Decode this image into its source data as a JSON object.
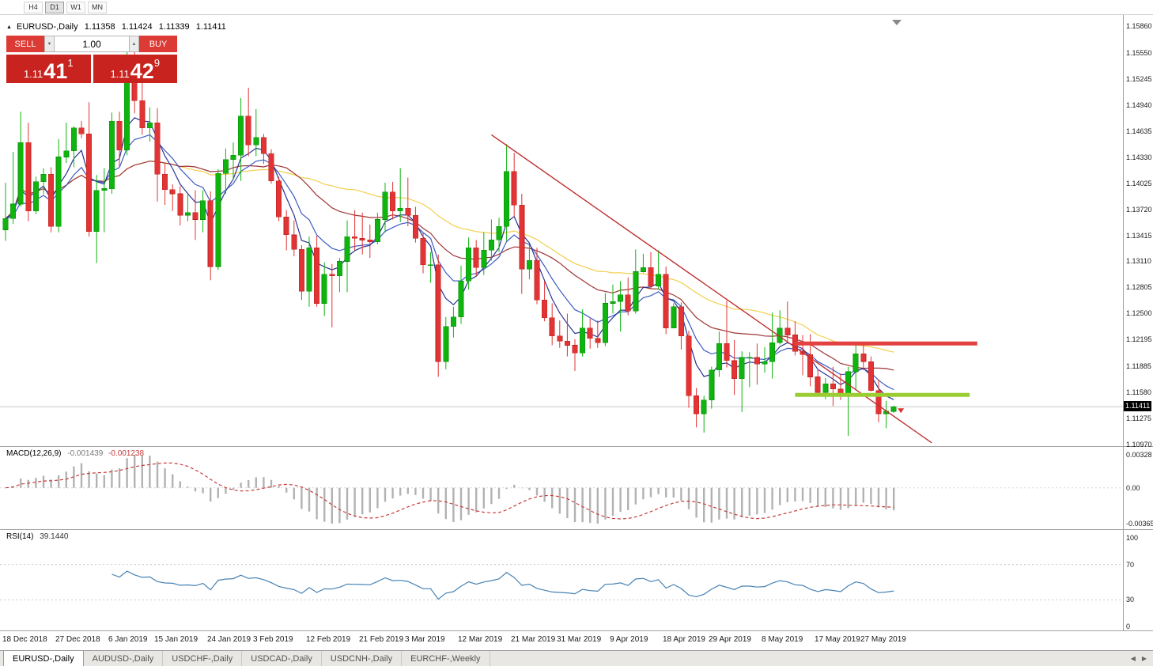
{
  "toolbar": {
    "timeframes": [
      "H4",
      "D1",
      "W1",
      "MN"
    ],
    "active_timeframe": "D1"
  },
  "chart_header": {
    "symbol": "EURUSD-,Daily",
    "open": "1.11358",
    "high": "1.11424",
    "low": "1.11339",
    "close": "1.11411"
  },
  "trade_panel": {
    "sell_label": "SELL",
    "buy_label": "BUY",
    "volume": "1.00",
    "bid_price": {
      "prefix": "1.11",
      "big": "41",
      "sup": "1"
    },
    "ask_price": {
      "prefix": "1.11",
      "big": "42",
      "sup": "9"
    }
  },
  "macd": {
    "label": "MACD(12,26,9)",
    "value_main": "-0.001439",
    "value_signal": "-0.001238",
    "axis_max": "0.00328",
    "axis_zero": "0.00",
    "axis_min": "-0.00365",
    "fast": 12,
    "slow": 26,
    "signal": 9
  },
  "rsi": {
    "label": "RSI(14)",
    "value": "39.1440",
    "period": 14,
    "axis": [
      "100",
      "70",
      "30",
      "0"
    ],
    "levels": [
      70,
      30
    ]
  },
  "tabs": [
    {
      "label": "EURUSD-,Daily",
      "active": true
    },
    {
      "label": "AUDUSD-,Daily",
      "active": false
    },
    {
      "label": "USDCHF-,Daily",
      "active": false
    },
    {
      "label": "USDCAD-,Daily",
      "active": false
    },
    {
      "label": "USDCNH-,Daily",
      "active": false
    },
    {
      "label": "EURCHF-,Weekly",
      "active": false
    }
  ],
  "icons": {
    "triangle_up": "▲",
    "triangle_down": "▼",
    "tab_scroll_left": "◀",
    "tab_scroll_right": "▶",
    "symbol_marker": "▲"
  },
  "chart_data": {
    "type": "candlestick",
    "title": "EURUSD- Daily",
    "price_axis": {
      "max": 1.1586,
      "min": 1.1097,
      "labels": [
        "1.15860",
        "1.15550",
        "1.15245",
        "1.14940",
        "1.14635",
        "1.14330",
        "1.14025",
        "1.13720",
        "1.13415",
        "1.13110",
        "1.12805",
        "1.12500",
        "1.12195",
        "1.11885",
        "1.11580",
        "1.11275",
        "1.10970"
      ]
    },
    "current_price": {
      "bid": 1.11411,
      "label": "1.11411"
    },
    "colors": {
      "up": "#0fb40f",
      "up_border": "#0a8f0a",
      "down": "#e23434",
      "down_border": "#bf2020"
    },
    "moving_averages": [
      {
        "period": 5,
        "type": "ema",
        "color": "#283593"
      },
      {
        "period": 10,
        "type": "ema",
        "color": "#3d5bc4"
      },
      {
        "period": 24,
        "type": "sma",
        "color": "#a03535"
      },
      {
        "period": 40,
        "type": "sma",
        "color": "#f2cf4d"
      }
    ],
    "overlays": {
      "trendline": {
        "i1": 64,
        "p1": 1.1459,
        "i2": 122,
        "p2": 1.1099,
        "color": "#c03030"
      },
      "resistance": {
        "price": 1.1215,
        "i1": 104,
        "i2": 128,
        "color": "#e34040"
      },
      "support": {
        "price": 1.1155,
        "i1": 104,
        "i2": 127,
        "color": "#9acd32"
      }
    },
    "date_labels": [
      {
        "text": "18 Dec 2018",
        "index": 0
      },
      {
        "text": "27 Dec 2018",
        "index": 7
      },
      {
        "text": "6 Jan 2019",
        "index": 14
      },
      {
        "text": "15 Jan 2019",
        "index": 20
      },
      {
        "text": "24 Jan 2019",
        "index": 27
      },
      {
        "text": "3 Feb 2019",
        "index": 33
      },
      {
        "text": "12 Feb 2019",
        "index": 40
      },
      {
        "text": "21 Feb 2019",
        "index": 47
      },
      {
        "text": "3 Mar 2019",
        "index": 53
      },
      {
        "text": "12 Mar 2019",
        "index": 60
      },
      {
        "text": "21 Mar 2019",
        "index": 67
      },
      {
        "text": "31 Mar 2019",
        "index": 73
      },
      {
        "text": "9 Apr 2019",
        "index": 80
      },
      {
        "text": "18 Apr 2019",
        "index": 87
      },
      {
        "text": "29 Apr 2019",
        "index": 93
      },
      {
        "text": "8 May 2019",
        "index": 100
      },
      {
        "text": "17 May 2019",
        "index": 107
      },
      {
        "text": "27 May 2019",
        "index": 113
      }
    ],
    "candles": [
      [
        1.1348,
        1.1403,
        1.1335,
        1.1361
      ],
      [
        1.1361,
        1.1439,
        1.1355,
        1.1378
      ],
      [
        1.1378,
        1.1486,
        1.1375,
        1.145
      ],
      [
        1.145,
        1.1473,
        1.1358,
        1.137
      ],
      [
        1.137,
        1.141,
        1.1366,
        1.1404
      ],
      [
        1.1404,
        1.142,
        1.139,
        1.1413
      ],
      [
        1.1413,
        1.1421,
        1.1345,
        1.1352
      ],
      [
        1.1352,
        1.1454,
        1.1345,
        1.1433
      ],
      [
        1.1433,
        1.1473,
        1.1426,
        1.144
      ],
      [
        1.144,
        1.1469,
        1.1421,
        1.1467
      ],
      [
        1.1467,
        1.1475,
        1.1455,
        1.146
      ],
      [
        1.146,
        1.1497,
        1.134,
        1.1346
      ],
      [
        1.1346,
        1.1412,
        1.1309,
        1.1394
      ],
      [
        1.1394,
        1.142,
        1.1345,
        1.1396
      ],
      [
        1.1396,
        1.1485,
        1.139,
        1.1475
      ],
      [
        1.1475,
        1.1486,
        1.1422,
        1.1441
      ],
      [
        1.1441,
        1.157,
        1.1435,
        1.1545
      ],
      [
        1.1545,
        1.1571,
        1.1484,
        1.1499
      ],
      [
        1.1499,
        1.1541,
        1.1459,
        1.1467
      ],
      [
        1.1467,
        1.1491,
        1.1451,
        1.1473
      ],
      [
        1.1473,
        1.149,
        1.1381,
        1.1413
      ],
      [
        1.1413,
        1.1426,
        1.1377,
        1.1395
      ],
      [
        1.1395,
        1.1401,
        1.137,
        1.139
      ],
      [
        1.139,
        1.1399,
        1.1353,
        1.1365
      ],
      [
        1.1365,
        1.139,
        1.1358,
        1.1368
      ],
      [
        1.1368,
        1.1394,
        1.1336,
        1.136
      ],
      [
        1.136,
        1.1394,
        1.1345,
        1.1382
      ],
      [
        1.1382,
        1.1393,
        1.1289,
        1.1305
      ],
      [
        1.1305,
        1.1419,
        1.1301,
        1.1414
      ],
      [
        1.1414,
        1.1443,
        1.139,
        1.143
      ],
      [
        1.143,
        1.145,
        1.1407,
        1.1435
      ],
      [
        1.1435,
        1.1502,
        1.1405,
        1.1481
      ],
      [
        1.1481,
        1.1514,
        1.1434,
        1.1447
      ],
      [
        1.1447,
        1.1489,
        1.1434,
        1.1456
      ],
      [
        1.1456,
        1.146,
        1.1425,
        1.1437
      ],
      [
        1.1437,
        1.1442,
        1.1402,
        1.1405
      ],
      [
        1.1405,
        1.141,
        1.1358,
        1.1363
      ],
      [
        1.1363,
        1.1371,
        1.1324,
        1.1342
      ],
      [
        1.1342,
        1.1359,
        1.1317,
        1.1325
      ],
      [
        1.1325,
        1.133,
        1.1266,
        1.1276
      ],
      [
        1.1276,
        1.134,
        1.1258,
        1.1327
      ],
      [
        1.1327,
        1.1341,
        1.1258,
        1.1262
      ],
      [
        1.1262,
        1.131,
        1.1247,
        1.1296
      ],
      [
        1.1296,
        1.1308,
        1.1234,
        1.1294
      ],
      [
        1.1294,
        1.1315,
        1.1275,
        1.1311
      ],
      [
        1.1311,
        1.1359,
        1.1275,
        1.134
      ],
      [
        1.134,
        1.1371,
        1.1324,
        1.1338
      ],
      [
        1.1338,
        1.1368,
        1.1319,
        1.1336
      ],
      [
        1.1336,
        1.1354,
        1.1315,
        1.1334
      ],
      [
        1.1334,
        1.1368,
        1.1331,
        1.136
      ],
      [
        1.136,
        1.1403,
        1.1345,
        1.1392
      ],
      [
        1.1392,
        1.1404,
        1.136,
        1.137
      ],
      [
        1.137,
        1.142,
        1.1357,
        1.1373
      ],
      [
        1.1373,
        1.1409,
        1.1352,
        1.1365
      ],
      [
        1.1365,
        1.1375,
        1.1333,
        1.1338
      ],
      [
        1.1338,
        1.1344,
        1.1297,
        1.1307
      ],
      [
        1.1307,
        1.1322,
        1.1286,
        1.1307
      ],
      [
        1.1307,
        1.1319,
        1.1176,
        1.1194
      ],
      [
        1.1194,
        1.1246,
        1.1185,
        1.1235
      ],
      [
        1.1235,
        1.1258,
        1.1222,
        1.1246
      ],
      [
        1.1246,
        1.1306,
        1.1238,
        1.1288
      ],
      [
        1.1288,
        1.1339,
        1.1278,
        1.1327
      ],
      [
        1.1327,
        1.1336,
        1.1294,
        1.1304
      ],
      [
        1.1304,
        1.1345,
        1.1295,
        1.1324
      ],
      [
        1.1324,
        1.136,
        1.1312,
        1.1336
      ],
      [
        1.1336,
        1.1362,
        1.1322,
        1.1352
      ],
      [
        1.1352,
        1.1448,
        1.1335,
        1.1416
      ],
      [
        1.1416,
        1.1438,
        1.1363,
        1.1377
      ],
      [
        1.1377,
        1.139,
        1.1273,
        1.1302
      ],
      [
        1.1302,
        1.133,
        1.129,
        1.1312
      ],
      [
        1.1312,
        1.1327,
        1.1261,
        1.1266
      ],
      [
        1.1266,
        1.1288,
        1.1241,
        1.1245
      ],
      [
        1.1245,
        1.1262,
        1.1213,
        1.1224
      ],
      [
        1.1224,
        1.1242,
        1.121,
        1.1218
      ],
      [
        1.1218,
        1.125,
        1.12,
        1.1213
      ],
      [
        1.1213,
        1.122,
        1.1183,
        1.1204
      ],
      [
        1.1204,
        1.1255,
        1.12,
        1.1233
      ],
      [
        1.1233,
        1.1244,
        1.1209,
        1.1221
      ],
      [
        1.1221,
        1.1242,
        1.121,
        1.1216
      ],
      [
        1.1216,
        1.1274,
        1.1212,
        1.1262
      ],
      [
        1.1262,
        1.1284,
        1.125,
        1.1264
      ],
      [
        1.1264,
        1.1288,
        1.1229,
        1.1272
      ],
      [
        1.1272,
        1.1292,
        1.1248,
        1.1253
      ],
      [
        1.1253,
        1.1325,
        1.125,
        1.1299
      ],
      [
        1.1299,
        1.132,
        1.1298,
        1.1304
      ],
      [
        1.1304,
        1.1322,
        1.1279,
        1.1282
      ],
      [
        1.1282,
        1.1324,
        1.1278,
        1.1296
      ],
      [
        1.1296,
        1.1305,
        1.1226,
        1.1233
      ],
      [
        1.1233,
        1.1262,
        1.1233,
        1.1258
      ],
      [
        1.1258,
        1.1263,
        1.1208,
        1.1224
      ],
      [
        1.1224,
        1.123,
        1.114,
        1.1154
      ],
      [
        1.1154,
        1.1163,
        1.1117,
        1.1133
      ],
      [
        1.1133,
        1.1154,
        1.1111,
        1.1149
      ],
      [
        1.1149,
        1.1188,
        1.1139,
        1.1184
      ],
      [
        1.1184,
        1.1229,
        1.1176,
        1.1215
      ],
      [
        1.1215,
        1.1265,
        1.1187,
        1.1195
      ],
      [
        1.1195,
        1.1219,
        1.1155,
        1.1174
      ],
      [
        1.1174,
        1.1206,
        1.1135,
        1.1199
      ],
      [
        1.1199,
        1.1205,
        1.1164,
        1.1199
      ],
      [
        1.1199,
        1.1215,
        1.1167,
        1.1191
      ],
      [
        1.1191,
        1.1211,
        1.1181,
        1.1194
      ],
      [
        1.1194,
        1.1251,
        1.1174,
        1.1216
      ],
      [
        1.1216,
        1.1254,
        1.1214,
        1.1233
      ],
      [
        1.1233,
        1.1264,
        1.1218,
        1.1225
      ],
      [
        1.1225,
        1.1241,
        1.1201,
        1.1206
      ],
      [
        1.1206,
        1.1225,
        1.1178,
        1.1202
      ],
      [
        1.1202,
        1.1226,
        1.1165,
        1.1176
      ],
      [
        1.1176,
        1.1184,
        1.1155,
        1.1158
      ],
      [
        1.1158,
        1.1175,
        1.115,
        1.1168
      ],
      [
        1.1168,
        1.1188,
        1.1142,
        1.1162
      ],
      [
        1.1162,
        1.118,
        1.1149,
        1.1154
      ],
      [
        1.1154,
        1.1188,
        1.1107,
        1.1182
      ],
      [
        1.1182,
        1.1213,
        1.1161,
        1.1203
      ],
      [
        1.1203,
        1.1215,
        1.1184,
        1.1194
      ],
      [
        1.1194,
        1.12,
        1.1159,
        1.116
      ],
      [
        1.116,
        1.1173,
        1.1123,
        1.1133
      ],
      [
        1.1133,
        1.1148,
        1.1116,
        1.1136
      ],
      [
        1.11358,
        1.11424,
        1.11339,
        1.11411
      ]
    ]
  }
}
